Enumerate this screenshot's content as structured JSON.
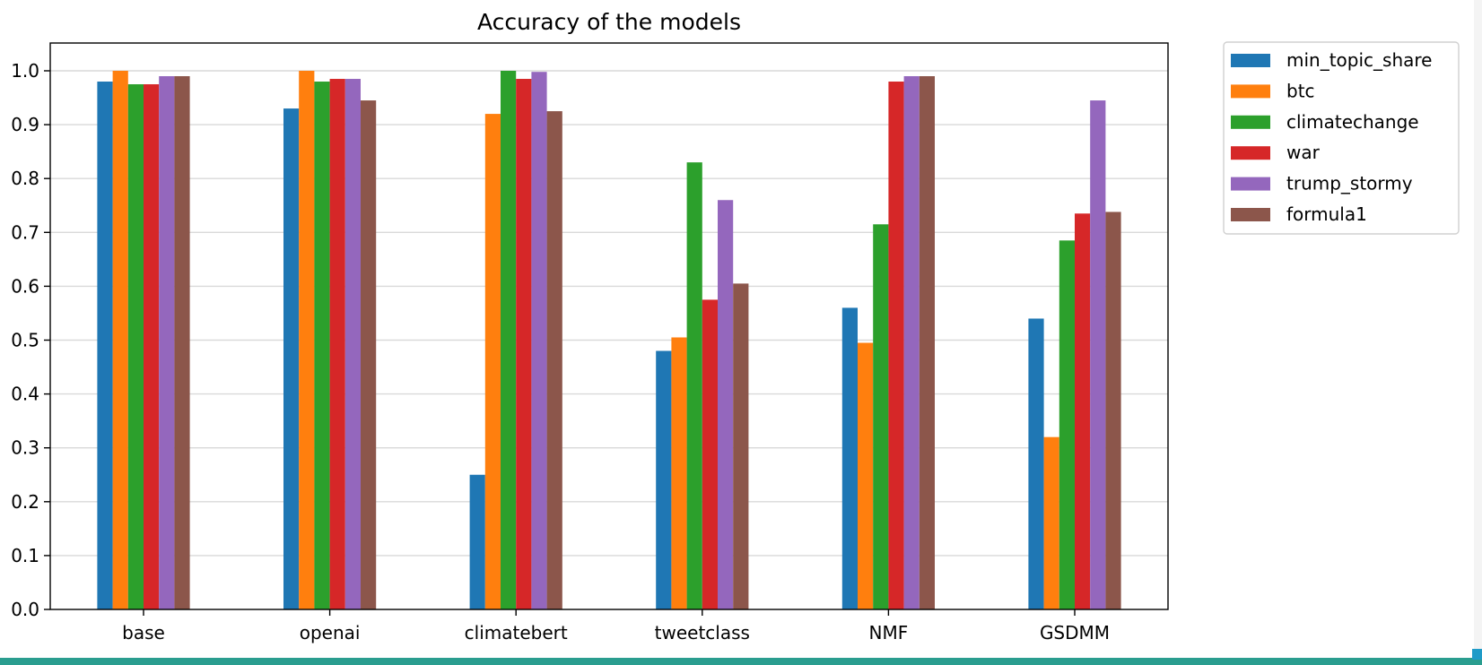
{
  "colors": {
    "band": "#2a9d8f",
    "corner": "#1f9bc8"
  },
  "chart_data": {
    "type": "bar",
    "title": "Accuracy of the models",
    "xlabel": "",
    "ylabel": "",
    "categories": [
      "base",
      "openai",
      "climatebert",
      "tweetclass",
      "NMF",
      "GSDMM"
    ],
    "ylim": [
      0,
      1.05
    ],
    "yticks": [
      "0.0",
      "0.1",
      "0.2",
      "0.3",
      "0.4",
      "0.5",
      "0.6",
      "0.7",
      "0.8",
      "0.9",
      "1.0"
    ],
    "grid": "y",
    "legend": "outside-top-right",
    "series": [
      {
        "name": "min_topic_share",
        "color": "#1f77b4",
        "values": [
          0.98,
          0.93,
          0.25,
          0.48,
          0.56,
          0.54
        ]
      },
      {
        "name": "btc",
        "color": "#ff7f0e",
        "values": [
          1.0,
          1.0,
          0.92,
          0.505,
          0.495,
          0.32
        ]
      },
      {
        "name": "climatechange",
        "color": "#2ca02c",
        "values": [
          0.975,
          0.98,
          1.0,
          0.83,
          0.715,
          0.685
        ]
      },
      {
        "name": "war",
        "color": "#d62728",
        "values": [
          0.975,
          0.985,
          0.985,
          0.575,
          0.98,
          0.735
        ]
      },
      {
        "name": "trump_stormy",
        "color": "#9467bd",
        "values": [
          0.99,
          0.985,
          0.998,
          0.76,
          0.99,
          0.945
        ]
      },
      {
        "name": "formula1",
        "color": "#8c564b",
        "values": [
          0.99,
          0.945,
          0.925,
          0.605,
          0.99,
          0.738
        ]
      }
    ]
  }
}
